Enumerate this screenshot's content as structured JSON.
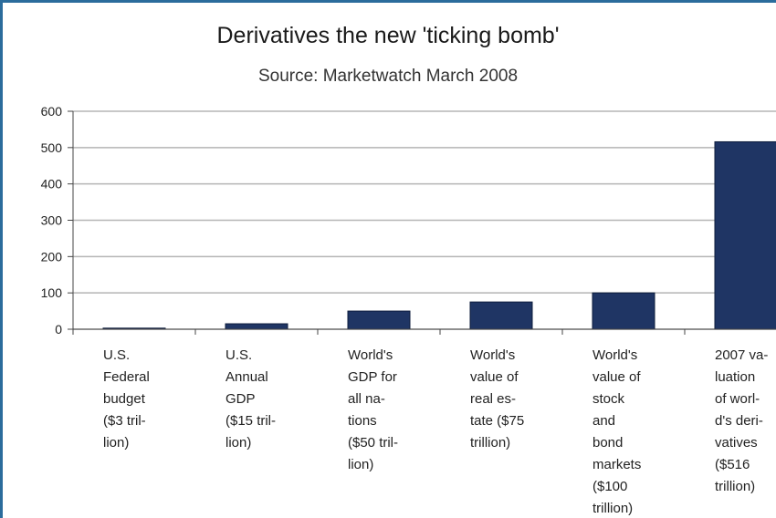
{
  "chart_data": {
    "type": "bar",
    "title": "Derivatives the new 'ticking bomb'",
    "subtitle": "Source: Marketwatch March 2008",
    "xlabel": "",
    "ylabel": "",
    "ylim": [
      0,
      600
    ],
    "yticks": [
      0,
      100,
      200,
      300,
      400,
      500,
      600
    ],
    "grid": true,
    "legend": "none",
    "bar_color": "#1f3564",
    "categories": [
      "U.S. Federal budget ($3 trillion)",
      "U.S. Annual GDP ($15 trillion)",
      "World's GDP for all nations ($50 trillion)",
      "World's value of real estate ($75 trillion)",
      "World's value of stock and bond markets ($100 trillion)",
      "2007 valuation of world's derivatives ($516 trillion)"
    ],
    "category_label_lines": [
      [
        "U.S.",
        "Federal",
        "budget",
        "($3 tril-",
        "lion)"
      ],
      [
        "U.S.",
        "Annual",
        "GDP",
        "($15 tril-",
        "lion)"
      ],
      [
        "World's",
        "GDP for",
        "all na-",
        "tions",
        "($50 tril-",
        "lion)"
      ],
      [
        "World's",
        "value of",
        "real es-",
        "tate ($75",
        "trillion)"
      ],
      [
        "World's",
        "value of",
        "stock",
        "and",
        "bond",
        "markets",
        "($100",
        "trillion)"
      ],
      [
        "2007 va-",
        "luation",
        "of worl-",
        "d's deri-",
        "vatives",
        "($516",
        "trillion)"
      ]
    ],
    "values": [
      3,
      15,
      50,
      75,
      100,
      516
    ]
  }
}
